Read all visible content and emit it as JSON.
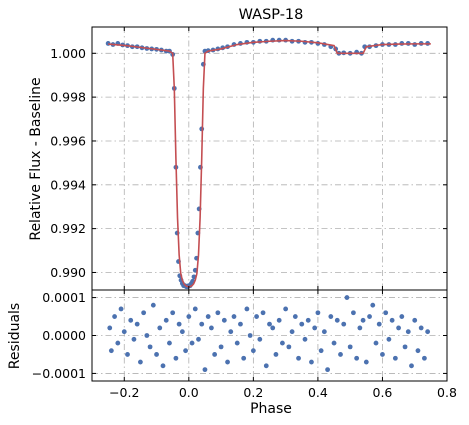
{
  "chart_data": [
    {
      "type": "scatter",
      "title": "WASP-18",
      "xlabel": "",
      "ylabel": "Relative Flux - Baseline",
      "xlim": [
        -0.3,
        0.8
      ],
      "ylim": [
        0.9892,
        1.0012
      ],
      "xticks": [
        -0.2,
        0.0,
        0.2,
        0.4,
        0.6,
        0.8
      ],
      "xtick_labels": [
        "",
        "",
        "",
        "",
        "",
        ""
      ],
      "yticks": [
        0.99,
        0.992,
        0.994,
        0.996,
        0.998,
        1.0
      ],
      "ytick_labels": [
        "0.990",
        "0.992",
        "0.994",
        "0.996",
        "0.998",
        "1.000"
      ],
      "grid": true,
      "series": [
        {
          "kind": "data-points",
          "color": "#4c72b0",
          "x": [
            -0.25,
            -0.235,
            -0.22,
            -0.205,
            -0.19,
            -0.175,
            -0.16,
            -0.145,
            -0.13,
            -0.115,
            -0.1,
            -0.085,
            -0.07,
            -0.06,
            -0.05,
            -0.045,
            -0.04,
            -0.036,
            -0.032,
            -0.028,
            -0.024,
            -0.02,
            -0.016,
            -0.012,
            -0.008,
            -0.004,
            0.0,
            0.004,
            0.008,
            0.012,
            0.016,
            0.02,
            0.024,
            0.028,
            0.032,
            0.036,
            0.04,
            0.045,
            0.05,
            0.06,
            0.075,
            0.09,
            0.105,
            0.12,
            0.14,
            0.16,
            0.18,
            0.2,
            0.22,
            0.24,
            0.26,
            0.28,
            0.3,
            0.32,
            0.34,
            0.36,
            0.38,
            0.4,
            0.42,
            0.44,
            0.455,
            0.465,
            0.48,
            0.5,
            0.52,
            0.535,
            0.545,
            0.56,
            0.58,
            0.6,
            0.62,
            0.64,
            0.66,
            0.68,
            0.7,
            0.72,
            0.74
          ],
          "y": [
            1.00045,
            1.0004,
            1.00045,
            1.00038,
            1.00035,
            1.0003,
            1.0003,
            1.00025,
            1.00022,
            1.0002,
            1.00018,
            1.00015,
            1.0001,
            1.0001,
            0.99995,
            0.9984,
            0.9948,
            0.9918,
            0.9905,
            0.98985,
            0.98965,
            0.9895,
            0.9894,
            0.9894,
            0.98935,
            0.98935,
            0.9894,
            0.9894,
            0.9895,
            0.9896,
            0.9898,
            0.9901,
            0.99065,
            0.9918,
            0.9929,
            0.9948,
            0.99655,
            0.9995,
            1.0001,
            1.00012,
            1.00015,
            1.0002,
            1.00025,
            1.0003,
            1.0004,
            1.00045,
            1.0005,
            1.0005,
            1.00055,
            1.00055,
            1.0006,
            1.0006,
            1.0006,
            1.00055,
            1.00055,
            1.0005,
            1.0005,
            1.00045,
            1.0004,
            1.0003,
            1.0002,
            1.0,
            1.00002,
            1.0,
            1.00005,
            1.0,
            1.0003,
            1.0003,
            1.00035,
            1.0004,
            1.0004,
            1.0004,
            1.00045,
            1.00045,
            1.0004,
            1.00045,
            1.00045
          ]
        },
        {
          "kind": "model-line",
          "color": "#c44e52",
          "x": [
            -0.25,
            -0.2,
            -0.15,
            -0.1,
            -0.06,
            -0.05,
            -0.045,
            -0.04,
            -0.035,
            -0.03,
            -0.025,
            -0.02,
            -0.015,
            -0.01,
            -0.005,
            0.0,
            0.005,
            0.01,
            0.015,
            0.02,
            0.025,
            0.03,
            0.035,
            0.04,
            0.045,
            0.05,
            0.06,
            0.1,
            0.15,
            0.2,
            0.25,
            0.3,
            0.35,
            0.4,
            0.45,
            0.46,
            0.47,
            0.53,
            0.54,
            0.55,
            0.6,
            0.65,
            0.7,
            0.75
          ],
          "y": [
            1.00042,
            1.00036,
            1.00027,
            1.00018,
            1.0001,
            1.0,
            0.9984,
            0.9952,
            0.9925,
            0.9908,
            0.98995,
            0.98965,
            0.98948,
            0.9894,
            0.98936,
            0.98935,
            0.98936,
            0.9894,
            0.98948,
            0.98965,
            0.98995,
            0.9908,
            0.9925,
            0.9952,
            0.9984,
            1.0,
            1.0001,
            1.0002,
            1.0004,
            1.0005,
            1.00055,
            1.00058,
            1.00055,
            1.00048,
            1.00035,
            1.0,
            1.0,
            1.0,
            1.0,
            1.0003,
            1.0004,
            1.00042,
            1.00043,
            1.00043
          ]
        }
      ]
    },
    {
      "type": "scatter",
      "title": "",
      "xlabel": "Phase",
      "ylabel": "Residuals",
      "xlim": [
        -0.3,
        0.8
      ],
      "ylim": [
        -0.00012,
        0.00012
      ],
      "xticks": [
        -0.2,
        0.0,
        0.2,
        0.4,
        0.6,
        0.8
      ],
      "xtick_labels": [
        "−0.2",
        "0.0",
        "0.2",
        "0.4",
        "0.6",
        "0.8"
      ],
      "yticks": [
        -0.0001,
        0.0,
        0.0001
      ],
      "ytick_labels": [
        "−0.0001",
        "0.0000",
        "0.0001"
      ],
      "grid": true,
      "series": [
        {
          "kind": "residual-points",
          "color": "#4c72b0",
          "x": [
            -0.245,
            -0.24,
            -0.23,
            -0.22,
            -0.21,
            -0.2,
            -0.19,
            -0.18,
            -0.17,
            -0.16,
            -0.15,
            -0.14,
            -0.13,
            -0.12,
            -0.11,
            -0.1,
            -0.09,
            -0.08,
            -0.07,
            -0.06,
            -0.05,
            -0.04,
            -0.03,
            -0.02,
            -0.01,
            0.0,
            0.01,
            0.02,
            0.03,
            0.04,
            0.05,
            0.06,
            0.07,
            0.08,
            0.09,
            0.1,
            0.11,
            0.12,
            0.13,
            0.14,
            0.15,
            0.16,
            0.17,
            0.18,
            0.19,
            0.2,
            0.21,
            0.22,
            0.23,
            0.24,
            0.25,
            0.26,
            0.27,
            0.28,
            0.29,
            0.3,
            0.31,
            0.32,
            0.33,
            0.34,
            0.35,
            0.36,
            0.37,
            0.38,
            0.39,
            0.4,
            0.41,
            0.42,
            0.43,
            0.44,
            0.45,
            0.46,
            0.47,
            0.48,
            0.49,
            0.5,
            0.51,
            0.52,
            0.53,
            0.54,
            0.55,
            0.56,
            0.57,
            0.58,
            0.59,
            0.6,
            0.61,
            0.62,
            0.63,
            0.64,
            0.65,
            0.66,
            0.67,
            0.68,
            0.69,
            0.7,
            0.71,
            0.72,
            0.73,
            0.74
          ],
          "y": [
            2e-05,
            -4e-05,
            5e-05,
            -2e-05,
            7e-05,
            1e-05,
            -5e-05,
            4e-05,
            -1e-05,
            3e-05,
            -7e-05,
            6e-05,
            0.0,
            -3e-05,
            8e-05,
            -5e-05,
            2e-05,
            -8e-05,
            4e-05,
            -2e-05,
            6e-05,
            -6e-05,
            3e-05,
            1e-05,
            -4e-05,
            5e-05,
            -2e-05,
            7e-05,
            -1e-05,
            3e-05,
            -9e-05,
            5e-05,
            2e-05,
            -5e-05,
            6e-05,
            -3e-05,
            4e-05,
            -7e-05,
            1e-05,
            5e-05,
            -2e-05,
            3e-05,
            -6e-05,
            7e-05,
            0.0,
            -4e-05,
            5e-05,
            -1e-05,
            6e-05,
            -8e-05,
            3e-05,
            2e-05,
            -5e-05,
            4e-05,
            -2e-05,
            7e-05,
            -3e-05,
            1e-05,
            5e-05,
            -6e-05,
            3e-05,
            -1e-05,
            4e-05,
            -7e-05,
            2e-05,
            6e-05,
            -4e-05,
            1e-05,
            -9e-05,
            5e-05,
            -2e-05,
            4e-05,
            -5e-05,
            3e-05,
            0.0001,
            -3e-05,
            6e-05,
            -6e-05,
            2e-05,
            4e-05,
            -7e-05,
            5e-05,
            8e-05,
            -2e-05,
            3e-05,
            -5e-05,
            6e-05,
            -1e-05,
            4e-05,
            -6e-05,
            2e-05,
            5e-05,
            -3e-05,
            1e-05,
            -8e-05,
            4e-05,
            -4e-05,
            2e-05,
            -6e-05,
            1e-05
          ]
        }
      ]
    }
  ]
}
